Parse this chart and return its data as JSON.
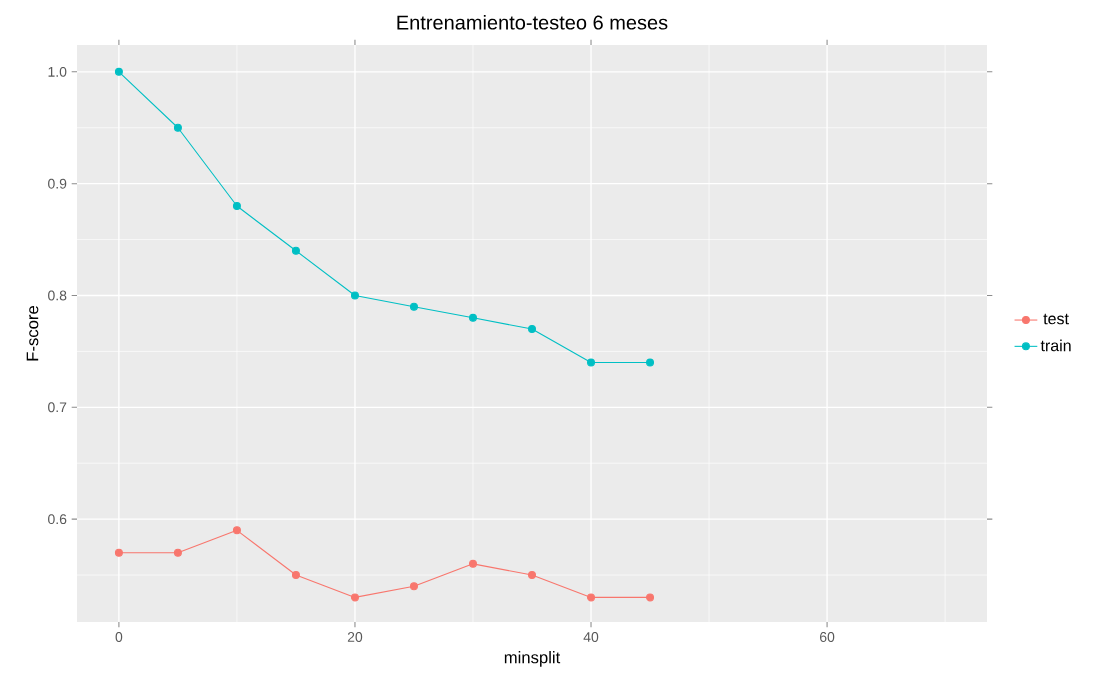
{
  "chart_data": {
    "type": "line",
    "title": "Entrenamiento-testeo 6 meses",
    "xlabel": "minsplit",
    "ylabel": "F-score",
    "x": [
      0,
      5,
      10,
      15,
      20,
      25,
      30,
      35,
      40,
      45
    ],
    "series": [
      {
        "name": "test",
        "color": "#f8766d",
        "values": [
          0.57,
          0.57,
          0.59,
          0.55,
          0.53,
          0.54,
          0.56,
          0.55,
          0.53,
          0.53
        ]
      },
      {
        "name": "train",
        "color": "#00bfc4",
        "values": [
          1.0,
          0.95,
          0.88,
          0.84,
          0.8,
          0.79,
          0.78,
          0.77,
          0.74,
          0.74
        ]
      }
    ],
    "xlim": [
      -3.55,
      73.55
    ],
    "ylim": [
      0.508,
      1.024
    ],
    "xticks": [
      0,
      20,
      40,
      60
    ],
    "yticks": [
      0.6,
      0.7,
      0.8,
      0.9,
      {
        "value": 1.0,
        "label": "1.0"
      }
    ],
    "grid": true,
    "legend": "right",
    "marker": "circle",
    "line_style": "solid"
  }
}
